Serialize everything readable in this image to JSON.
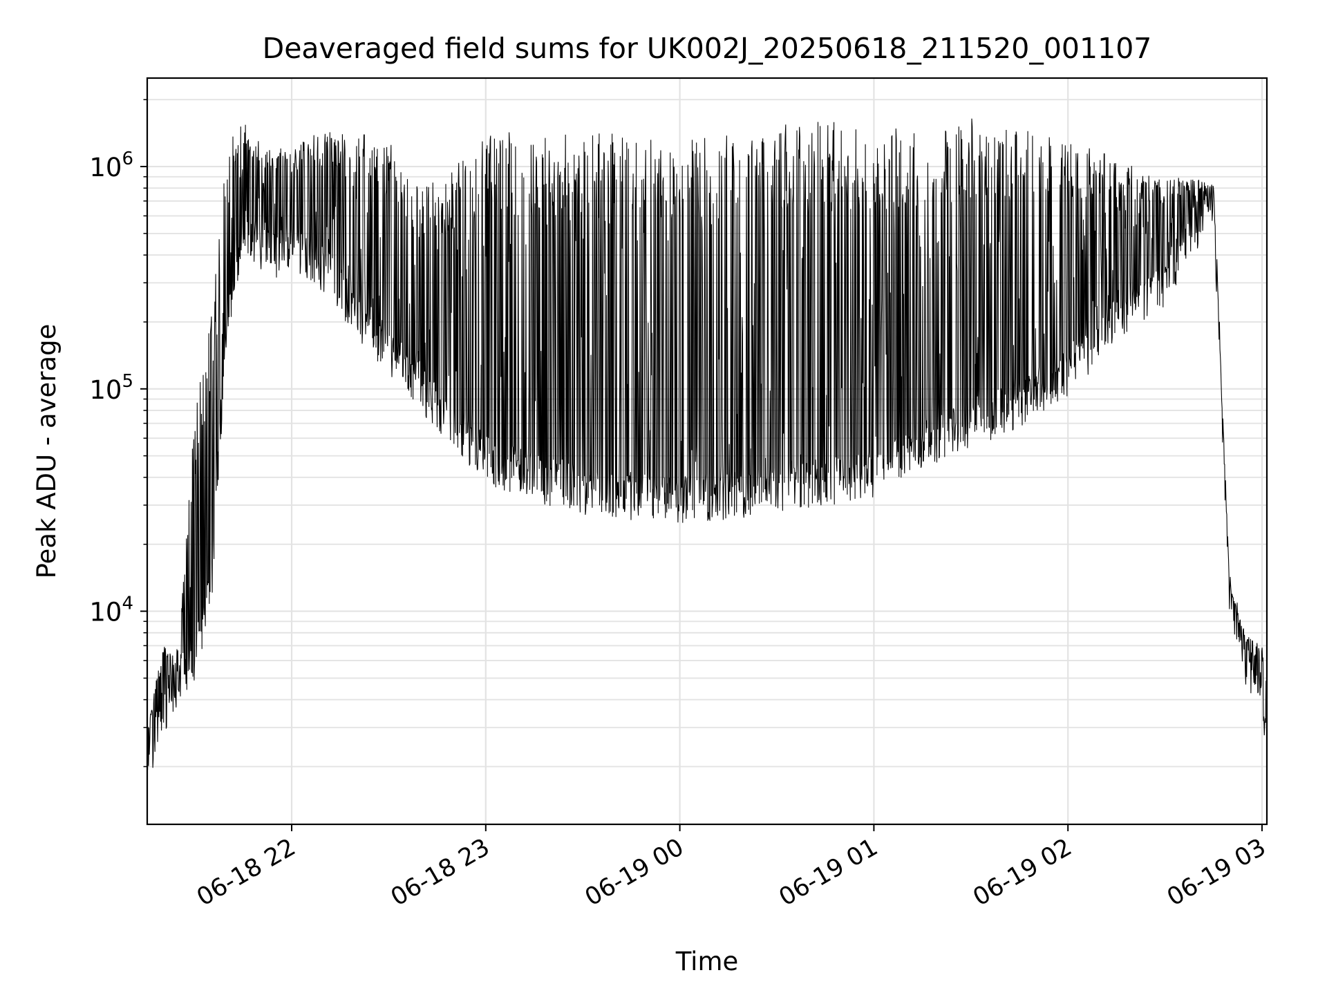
{
  "chart_data": {
    "type": "line",
    "title": "Deaveraged field sums for UK002J_20250618_211520_001107",
    "xlabel": "Time",
    "ylabel": "Peak ADU - average",
    "yscale": "log",
    "ylim": [
      1100,
      2500000
    ],
    "xlim": [
      "2025-06-18 21:15:20",
      "2025-06-19 03:01:30"
    ],
    "grid": true,
    "x_ticks": [
      {
        "time": "2025-06-18 22:00",
        "label": "06-18 22"
      },
      {
        "time": "2025-06-18 23:00",
        "label": "06-18 23"
      },
      {
        "time": "2025-06-19 00:00",
        "label": "06-19 00"
      },
      {
        "time": "2025-06-19 01:00",
        "label": "06-19 01"
      },
      {
        "time": "2025-06-19 02:00",
        "label": "06-19 02"
      },
      {
        "time": "2025-06-19 03:00",
        "label": "06-19 03"
      }
    ],
    "y_ticks": [
      {
        "value": 10000,
        "base": "10",
        "exp": "4"
      },
      {
        "value": 100000,
        "base": "10",
        "exp": "5"
      },
      {
        "value": 1000000,
        "base": "10",
        "exp": "6"
      }
    ],
    "series": [
      {
        "color": "#000000",
        "description": "dense spiky trace; baseline (lower envelope) and spike tops (upper envelope) sampled below",
        "envelope_time": [
          "2025-06-18 21:15",
          "2025-06-18 21:20",
          "2025-06-18 21:25",
          "2025-06-18 21:30",
          "2025-06-18 21:35",
          "2025-06-18 21:40",
          "2025-06-18 21:45",
          "2025-06-18 21:50",
          "2025-06-18 21:55",
          "2025-06-18 22:00",
          "2025-06-18 22:10",
          "2025-06-18 22:20",
          "2025-06-18 22:30",
          "2025-06-18 22:40",
          "2025-06-18 22:50",
          "2025-06-18 23:00",
          "2025-06-18 23:15",
          "2025-06-18 23:30",
          "2025-06-18 23:45",
          "2025-06-19 00:00",
          "2025-06-19 00:15",
          "2025-06-19 00:30",
          "2025-06-19 00:45",
          "2025-06-19 01:00",
          "2025-06-19 01:15",
          "2025-06-19 01:30",
          "2025-06-19 01:45",
          "2025-06-19 02:00",
          "2025-06-19 02:15",
          "2025-06-19 02:30",
          "2025-06-19 02:40",
          "2025-06-19 02:45",
          "2025-06-19 02:50",
          "2025-06-19 02:55",
          "2025-06-19 03:00",
          "2025-06-19 03:01"
        ],
        "baseline": [
          2000,
          3500,
          5000,
          6000,
          12000,
          200000,
          500000,
          450000,
          400000,
          450000,
          350000,
          220000,
          150000,
          100000,
          70000,
          48000,
          40000,
          35000,
          33000,
          32000,
          33000,
          36000,
          38000,
          42000,
          55000,
          70000,
          85000,
          120000,
          200000,
          300000,
          550000,
          700000,
          12000,
          6000,
          4500,
          3000
        ],
        "peaks": [
          2800,
          7000,
          7000,
          80000,
          200000,
          1500000,
          1600000,
          1300000,
          1300000,
          1200000,
          1500000,
          1500000,
          1300000,
          800000,
          1000000,
          1450000,
          1450000,
          1450000,
          1400000,
          1400000,
          1400000,
          1550000,
          1600000,
          1550000,
          1550000,
          1650000,
          1500000,
          1300000,
          1100000,
          900000,
          880000,
          850000,
          13000,
          8000,
          7000,
          5000
        ]
      }
    ]
  }
}
